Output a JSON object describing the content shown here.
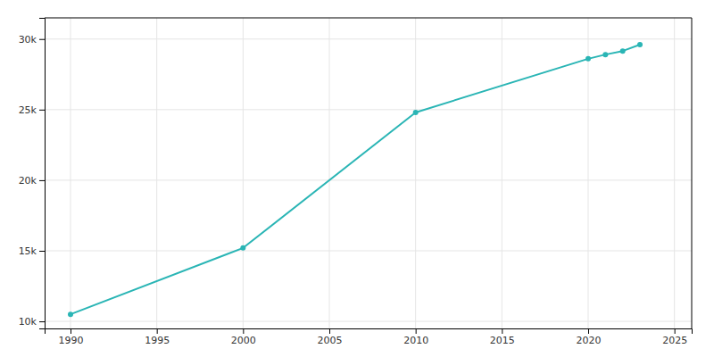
{
  "chart_data": {
    "type": "line",
    "x": [
      1990,
      2000,
      2010,
      2020,
      2021,
      2022,
      2023
    ],
    "values": [
      10500,
      15200,
      24800,
      28600,
      28900,
      29150,
      29600
    ],
    "color": "#2ab5b5",
    "marker": "circle",
    "xlim": [
      1988.5,
      2026
    ],
    "ylim": [
      9500,
      31500
    ],
    "xticks": [
      1990,
      1995,
      2000,
      2005,
      2010,
      2015,
      2020,
      2025
    ],
    "yticks": [
      {
        "value": 10000,
        "label": "10k"
      },
      {
        "value": 15000,
        "label": "15k"
      },
      {
        "value": 20000,
        "label": "20k"
      },
      {
        "value": 25000,
        "label": "25k"
      },
      {
        "value": 30000,
        "label": "30k"
      }
    ],
    "grid": true
  }
}
